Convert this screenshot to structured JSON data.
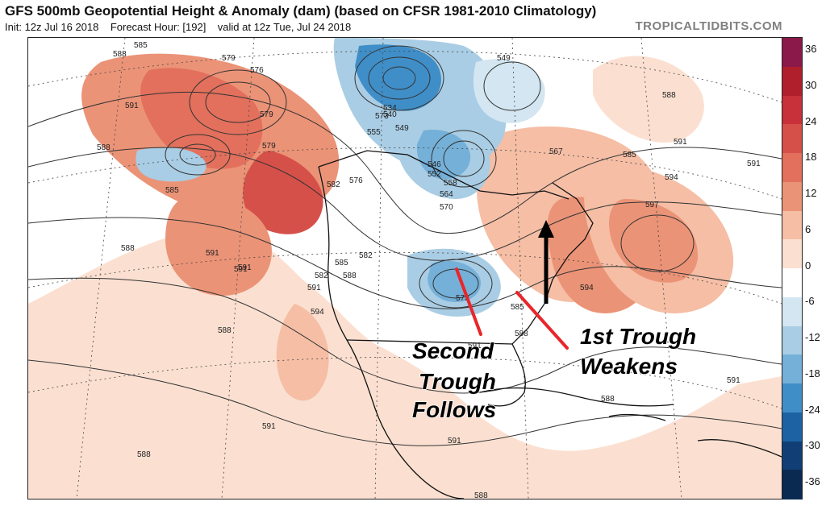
{
  "header": {
    "title": "GFS 500mb Geopotential Height & Anomaly (dam) (based on CFSR 1981-2010 Climatology)",
    "init": "Init: 12z Jul 16 2018",
    "forecast_hour": "Forecast Hour: [192]",
    "valid": "valid at 12z Tue, Jul 24 2018",
    "brand": "TROPICALTIDBITS.COM"
  },
  "colorbar": {
    "labels": [
      "36",
      "30",
      "24",
      "18",
      "12",
      "6",
      "0",
      "-6",
      "-12",
      "-18",
      "-24",
      "-30",
      "-36"
    ],
    "colors": [
      "#8b1a4a",
      "#b0202c",
      "#c8313a",
      "#d6504a",
      "#e2705c",
      "#eb9377",
      "#f5bea5",
      "#fbe0d1",
      "#ffffff",
      "#d3e6f1",
      "#a9cde4",
      "#75b0d8",
      "#3f8ec8",
      "#1d63a4",
      "#113f75",
      "#0a2a52"
    ]
  },
  "annotations": {
    "second_trough": [
      "Second",
      "Trough",
      "Follows"
    ],
    "first_trough": [
      "1st Trough",
      "Weakens"
    ]
  },
  "contour_labels": [
    "585",
    "579",
    "576",
    "588",
    "591",
    "588",
    "585",
    "579",
    "591",
    "588",
    "582",
    "579",
    "573",
    "555",
    "540",
    "549",
    "534",
    "549",
    "552",
    "546",
    "558",
    "564",
    "570",
    "567",
    "585",
    "588",
    "591",
    "591",
    "594",
    "597",
    "594",
    "576",
    "582",
    "585",
    "582",
    "588",
    "591",
    "594",
    "588",
    "591",
    "573",
    "585",
    "588",
    "591",
    "588",
    "591",
    "591",
    "591",
    "588",
    "588",
    "591"
  ]
}
